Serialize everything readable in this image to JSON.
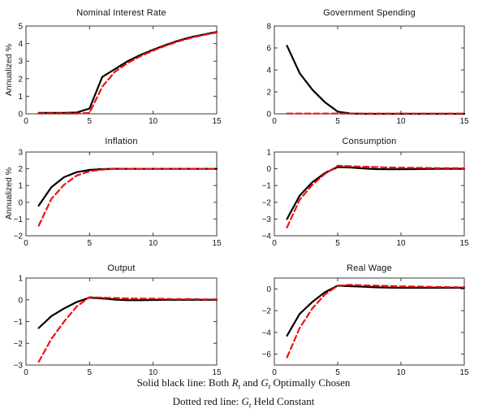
{
  "figure": {
    "background": "#ffffff",
    "axis_color": "#3a3a3a",
    "solid_line_color": "#000000",
    "dashed_line_color": "#ee1111"
  },
  "caption": {
    "line1": {
      "pre": "Solid black line: Both ",
      "var1": "R",
      "sub1": "t",
      "mid": " and ",
      "var2": "G",
      "sub2": "t",
      "post": " Optimally Chosen"
    },
    "line2": {
      "pre": "Dotted red line: ",
      "var1": "G",
      "sub1": "t",
      "post": " Held Constant"
    }
  },
  "chart_data": [
    {
      "type": "line",
      "title": "Nominal Interest Rate",
      "ylabel": "Annualized %",
      "xlabel": "",
      "xlim": [
        0,
        15
      ],
      "ylim": [
        0,
        5
      ],
      "xticks": [
        0,
        5,
        10,
        15
      ],
      "yticks": [
        0,
        1,
        2,
        3,
        4,
        5
      ],
      "grid": false,
      "x": [
        1,
        2,
        3,
        4,
        5,
        6,
        7,
        8,
        9,
        10,
        11,
        12,
        13,
        14,
        15
      ],
      "series": [
        {
          "name": "Both Rt and Gt Optimally Chosen",
          "style": "solid",
          "color": "#000000",
          "values": [
            0.05,
            0.05,
            0.05,
            0.08,
            0.3,
            2.1,
            2.55,
            3.0,
            3.35,
            3.65,
            3.92,
            4.17,
            4.37,
            4.52,
            4.66
          ]
        },
        {
          "name": "Gt Held Constant",
          "style": "dashed",
          "color": "#ee1111",
          "values": [
            0.02,
            0.02,
            0.02,
            0.02,
            0.05,
            1.55,
            2.4,
            2.9,
            3.28,
            3.6,
            3.88,
            4.13,
            4.33,
            4.49,
            4.63
          ]
        }
      ]
    },
    {
      "type": "line",
      "title": "Government Spending",
      "ylabel": "",
      "xlabel": "",
      "xlim": [
        0,
        15
      ],
      "ylim": [
        0,
        8
      ],
      "xticks": [
        0,
        5,
        10,
        15
      ],
      "yticks": [
        0,
        2,
        4,
        6,
        8
      ],
      "grid": false,
      "x": [
        1,
        2,
        3,
        4,
        5,
        6,
        7,
        8,
        9,
        10,
        11,
        12,
        13,
        14,
        15
      ],
      "series": [
        {
          "name": "Both Rt and Gt Optimally Chosen",
          "style": "solid",
          "color": "#000000",
          "values": [
            6.2,
            3.7,
            2.2,
            1.05,
            0.2,
            0.03,
            0.0,
            0.0,
            0.0,
            0.0,
            0.0,
            0.0,
            0.0,
            0.0,
            0.0
          ]
        },
        {
          "name": "Gt Held Constant",
          "style": "dashed",
          "color": "#ee1111",
          "values": [
            0.02,
            0.02,
            0.02,
            0.02,
            0.02,
            0.02,
            0.02,
            0.02,
            0.02,
            0.02,
            0.02,
            0.02,
            0.02,
            0.02,
            0.02
          ]
        }
      ]
    },
    {
      "type": "line",
      "title": "Inflation",
      "ylabel": "Annualized %",
      "xlabel": "",
      "xlim": [
        0,
        15
      ],
      "ylim": [
        -2,
        3
      ],
      "xticks": [
        0,
        5,
        10,
        15
      ],
      "yticks": [
        -2,
        -1,
        0,
        1,
        2,
        3
      ],
      "grid": false,
      "x": [
        1,
        2,
        3,
        4,
        5,
        6,
        7,
        8,
        9,
        10,
        11,
        12,
        13,
        14,
        15
      ],
      "series": [
        {
          "name": "Both Rt and Gt Optimally Chosen",
          "style": "solid",
          "color": "#000000",
          "values": [
            -0.2,
            0.9,
            1.5,
            1.8,
            1.93,
            1.98,
            2.0,
            2.0,
            2.0,
            2.0,
            2.0,
            2.0,
            2.0,
            2.0,
            2.0
          ]
        },
        {
          "name": "Gt Held Constant",
          "style": "dashed",
          "color": "#ee1111",
          "values": [
            -1.4,
            0.2,
            1.05,
            1.6,
            1.85,
            1.95,
            1.99,
            2.0,
            2.0,
            2.0,
            2.0,
            2.0,
            2.0,
            2.0,
            2.0
          ]
        }
      ]
    },
    {
      "type": "line",
      "title": "Consumption",
      "ylabel": "",
      "xlabel": "",
      "xlim": [
        0,
        15
      ],
      "ylim": [
        -4,
        1
      ],
      "xticks": [
        0,
        5,
        10,
        15
      ],
      "yticks": [
        -4,
        -3,
        -2,
        -1,
        0,
        1
      ],
      "grid": false,
      "x": [
        1,
        2,
        3,
        4,
        5,
        6,
        7,
        8,
        9,
        10,
        11,
        12,
        13,
        14,
        15
      ],
      "series": [
        {
          "name": "Both Rt and Gt Optimally Chosen",
          "style": "solid",
          "color": "#000000",
          "values": [
            -3.0,
            -1.6,
            -0.8,
            -0.25,
            0.1,
            0.08,
            0.02,
            -0.02,
            -0.03,
            -0.03,
            -0.02,
            -0.01,
            0.0,
            0.0,
            0.0
          ]
        },
        {
          "name": "Gt Held Constant",
          "style": "dashed",
          "color": "#ee1111",
          "values": [
            -3.5,
            -1.85,
            -0.95,
            -0.3,
            0.18,
            0.15,
            0.12,
            0.1,
            0.08,
            0.07,
            0.06,
            0.05,
            0.04,
            0.04,
            0.03
          ]
        }
      ]
    },
    {
      "type": "line",
      "title": "Output",
      "ylabel": "",
      "xlabel": "",
      "xlim": [
        0,
        15
      ],
      "ylim": [
        -3,
        1
      ],
      "xticks": [
        0,
        5,
        10,
        15
      ],
      "yticks": [
        -3,
        -2,
        -1,
        0,
        1
      ],
      "grid": false,
      "x": [
        1,
        2,
        3,
        4,
        5,
        6,
        7,
        8,
        9,
        10,
        11,
        12,
        13,
        14,
        15
      ],
      "series": [
        {
          "name": "Both Rt and Gt Optimally Chosen",
          "style": "solid",
          "color": "#000000",
          "values": [
            -1.3,
            -0.75,
            -0.4,
            -0.1,
            0.1,
            0.06,
            0.01,
            -0.02,
            -0.02,
            -0.01,
            0.0,
            0.0,
            0.0,
            0.0,
            0.0
          ]
        },
        {
          "name": "Gt Held Constant",
          "style": "dashed",
          "color": "#ee1111",
          "values": [
            -2.85,
            -1.8,
            -1.0,
            -0.3,
            0.12,
            0.1,
            0.08,
            0.06,
            0.05,
            0.05,
            0.04,
            0.03,
            0.03,
            0.02,
            0.02
          ]
        }
      ]
    },
    {
      "type": "line",
      "title": "Real Wage",
      "ylabel": "",
      "xlabel": "",
      "xlim": [
        0,
        15
      ],
      "ylim": [
        -7,
        1
      ],
      "xticks": [
        0,
        5,
        10,
        15
      ],
      "yticks": [
        -6,
        -4,
        -2,
        0
      ],
      "grid": false,
      "x": [
        1,
        2,
        3,
        4,
        5,
        6,
        7,
        8,
        9,
        10,
        11,
        12,
        13,
        14,
        15
      ],
      "series": [
        {
          "name": "Both Rt and Gt Optimally Chosen",
          "style": "solid",
          "color": "#000000",
          "values": [
            -4.3,
            -2.3,
            -1.2,
            -0.3,
            0.3,
            0.25,
            0.2,
            0.15,
            0.12,
            0.1,
            0.1,
            0.1,
            0.1,
            0.1,
            0.1
          ]
        },
        {
          "name": "Gt Held Constant",
          "style": "dashed",
          "color": "#ee1111",
          "values": [
            -6.3,
            -3.6,
            -1.8,
            -0.5,
            0.3,
            0.38,
            0.33,
            0.3,
            0.27,
            0.24,
            0.22,
            0.2,
            0.18,
            0.16,
            0.15
          ]
        }
      ]
    }
  ]
}
